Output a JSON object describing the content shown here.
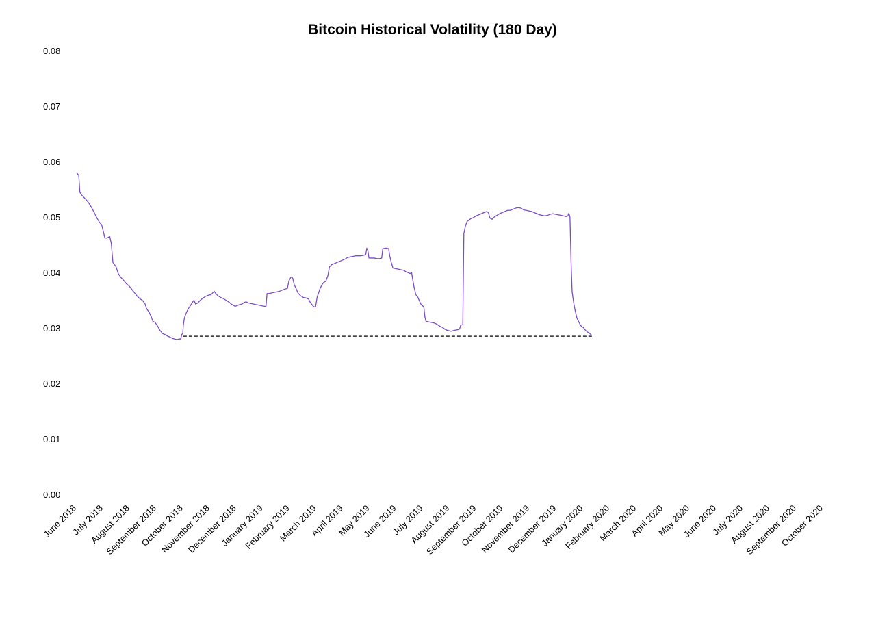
{
  "chart_data": {
    "type": "line",
    "title": "Bitcoin Historical Volatility (180 Day)",
    "xlabel": "",
    "ylabel": "",
    "ylim": [
      0,
      0.08
    ],
    "yticks": [
      "0.00",
      "0.01",
      "0.02",
      "0.03",
      "0.04",
      "0.05",
      "0.06",
      "0.07",
      "0.08"
    ],
    "categories": [
      "June 2018",
      "July 2018",
      "August 2018",
      "September 2018",
      "October 2018",
      "November 2018",
      "December 2018",
      "January 2019",
      "February 2019",
      "March 2019",
      "April 2019",
      "May 2019",
      "June 2019",
      "July 2019",
      "August 2019",
      "September 2019",
      "October 2019",
      "November 2019",
      "December 2019",
      "January 2020",
      "February 2020",
      "March 2020",
      "April 2020",
      "May 2020",
      "June 2020",
      "July 2020",
      "August 2020",
      "September 2020",
      "October 2020"
    ],
    "grid": false,
    "legend": "none",
    "line_color": "#7b4bc8",
    "reference_line_color": "#000000",
    "series": [
      {
        "style": "solid",
        "points": [
          [
            0.0,
            0.058
          ],
          [
            0.08,
            0.0575
          ],
          [
            0.12,
            0.0545
          ],
          [
            0.18,
            0.054
          ],
          [
            0.26,
            0.0536
          ],
          [
            0.36,
            0.0531
          ],
          [
            0.46,
            0.0525
          ],
          [
            0.56,
            0.0517
          ],
          [
            0.66,
            0.0508
          ],
          [
            0.74,
            0.05
          ],
          [
            0.8,
            0.0495
          ],
          [
            0.86,
            0.049
          ],
          [
            0.94,
            0.0486
          ],
          [
            1.02,
            0.047
          ],
          [
            1.06,
            0.0462
          ],
          [
            1.14,
            0.0462
          ],
          [
            1.24,
            0.0465
          ],
          [
            1.3,
            0.0452
          ],
          [
            1.36,
            0.0418
          ],
          [
            1.42,
            0.0414
          ],
          [
            1.48,
            0.041
          ],
          [
            1.56,
            0.0398
          ],
          [
            1.66,
            0.0391
          ],
          [
            1.76,
            0.0386
          ],
          [
            1.86,
            0.038
          ],
          [
            1.96,
            0.0376
          ],
          [
            2.06,
            0.037
          ],
          [
            2.16,
            0.0364
          ],
          [
            2.26,
            0.0358
          ],
          [
            2.36,
            0.0353
          ],
          [
            2.46,
            0.035
          ],
          [
            2.56,
            0.0344
          ],
          [
            2.62,
            0.0335
          ],
          [
            2.72,
            0.0328
          ],
          [
            2.8,
            0.032
          ],
          [
            2.86,
            0.0312
          ],
          [
            2.94,
            0.031
          ],
          [
            3.04,
            0.0303
          ],
          [
            3.12,
            0.0296
          ],
          [
            3.22,
            0.029
          ],
          [
            3.32,
            0.0288
          ],
          [
            3.42,
            0.0285
          ],
          [
            3.52,
            0.0283
          ],
          [
            3.6,
            0.0281
          ],
          [
            3.68,
            0.028
          ],
          [
            3.76,
            0.0279
          ],
          [
            3.84,
            0.028
          ],
          [
            3.9,
            0.028
          ],
          [
            3.94,
            0.0288
          ],
          [
            3.98,
            0.029
          ],
          [
            4.0,
            0.0305
          ],
          [
            4.04,
            0.0318
          ],
          [
            4.1,
            0.0326
          ],
          [
            4.18,
            0.0334
          ],
          [
            4.26,
            0.034
          ],
          [
            4.34,
            0.0346
          ],
          [
            4.4,
            0.035
          ],
          [
            4.46,
            0.0343
          ],
          [
            4.54,
            0.0345
          ],
          [
            4.64,
            0.035
          ],
          [
            4.74,
            0.0354
          ],
          [
            4.84,
            0.0357
          ],
          [
            4.94,
            0.0359
          ],
          [
            5.04,
            0.036
          ],
          [
            5.1,
            0.0363
          ],
          [
            5.16,
            0.0366
          ],
          [
            5.22,
            0.0362
          ],
          [
            5.3,
            0.0358
          ],
          [
            5.4,
            0.0355
          ],
          [
            5.5,
            0.0353
          ],
          [
            5.6,
            0.035
          ],
          [
            5.7,
            0.0347
          ],
          [
            5.8,
            0.0343
          ],
          [
            5.88,
            0.0341
          ],
          [
            5.94,
            0.0339
          ],
          [
            6.0,
            0.034
          ],
          [
            6.1,
            0.0342
          ],
          [
            6.2,
            0.0343
          ],
          [
            6.28,
            0.0346
          ],
          [
            6.36,
            0.0347
          ],
          [
            6.44,
            0.0345
          ],
          [
            6.54,
            0.0344
          ],
          [
            6.64,
            0.0343
          ],
          [
            6.74,
            0.0342
          ],
          [
            6.84,
            0.0341
          ],
          [
            6.94,
            0.034
          ],
          [
            7.04,
            0.0339
          ],
          [
            7.1,
            0.0339
          ],
          [
            7.14,
            0.0362
          ],
          [
            7.2,
            0.0362
          ],
          [
            7.3,
            0.0363
          ],
          [
            7.4,
            0.0364
          ],
          [
            7.5,
            0.0365
          ],
          [
            7.6,
            0.0366
          ],
          [
            7.7,
            0.0368
          ],
          [
            7.8,
            0.037
          ],
          [
            7.9,
            0.0371
          ],
          [
            7.96,
            0.0385
          ],
          [
            8.04,
            0.0392
          ],
          [
            8.1,
            0.039
          ],
          [
            8.16,
            0.0378
          ],
          [
            8.22,
            0.0372
          ],
          [
            8.3,
            0.0363
          ],
          [
            8.4,
            0.0358
          ],
          [
            8.5,
            0.0355
          ],
          [
            8.6,
            0.0354
          ],
          [
            8.7,
            0.0352
          ],
          [
            8.76,
            0.0346
          ],
          [
            8.84,
            0.0341
          ],
          [
            8.9,
            0.0338
          ],
          [
            8.96,
            0.0338
          ],
          [
            9.02,
            0.0356
          ],
          [
            9.08,
            0.0364
          ],
          [
            9.12,
            0.037
          ],
          [
            9.2,
            0.0378
          ],
          [
            9.26,
            0.0382
          ],
          [
            9.34,
            0.0384
          ],
          [
            9.42,
            0.0394
          ],
          [
            9.48,
            0.041
          ],
          [
            9.56,
            0.0414
          ],
          [
            9.66,
            0.0416
          ],
          [
            9.76,
            0.0418
          ],
          [
            9.86,
            0.042
          ],
          [
            9.96,
            0.0422
          ],
          [
            10.06,
            0.0424
          ],
          [
            10.16,
            0.0427
          ],
          [
            10.26,
            0.0428
          ],
          [
            10.36,
            0.0429
          ],
          [
            10.46,
            0.043
          ],
          [
            10.56,
            0.043
          ],
          [
            10.66,
            0.043
          ],
          [
            10.76,
            0.0431
          ],
          [
            10.84,
            0.0432
          ],
          [
            10.88,
            0.0444
          ],
          [
            10.92,
            0.044
          ],
          [
            10.96,
            0.0426
          ],
          [
            11.06,
            0.0426
          ],
          [
            11.16,
            0.0426
          ],
          [
            11.26,
            0.0425
          ],
          [
            11.36,
            0.0425
          ],
          [
            11.44,
            0.0426
          ],
          [
            11.48,
            0.0443
          ],
          [
            11.6,
            0.0444
          ],
          [
            11.7,
            0.0443
          ],
          [
            11.74,
            0.043
          ],
          [
            11.8,
            0.0418
          ],
          [
            11.86,
            0.0408
          ],
          [
            11.96,
            0.0407
          ],
          [
            12.06,
            0.0406
          ],
          [
            12.16,
            0.0405
          ],
          [
            12.26,
            0.0404
          ],
          [
            12.36,
            0.0401
          ],
          [
            12.46,
            0.0399
          ],
          [
            12.5,
            0.0398
          ],
          [
            12.56,
            0.04
          ],
          [
            12.6,
            0.0388
          ],
          [
            12.66,
            0.0372
          ],
          [
            12.72,
            0.036
          ],
          [
            12.8,
            0.0355
          ],
          [
            12.86,
            0.0348
          ],
          [
            12.92,
            0.0342
          ],
          [
            13.02,
            0.0338
          ],
          [
            13.06,
            0.032
          ],
          [
            13.1,
            0.0312
          ],
          [
            13.2,
            0.0311
          ],
          [
            13.3,
            0.031
          ],
          [
            13.4,
            0.0309
          ],
          [
            13.5,
            0.0307
          ],
          [
            13.56,
            0.0305
          ],
          [
            13.62,
            0.0303
          ],
          [
            13.72,
            0.0301
          ],
          [
            13.8,
            0.0298
          ],
          [
            13.88,
            0.0296
          ],
          [
            13.96,
            0.0295
          ],
          [
            14.04,
            0.0294
          ],
          [
            14.12,
            0.0295
          ],
          [
            14.2,
            0.0296
          ],
          [
            14.3,
            0.0297
          ],
          [
            14.36,
            0.0298
          ],
          [
            14.4,
            0.0305
          ],
          [
            14.48,
            0.0306
          ],
          [
            14.52,
            0.047
          ],
          [
            14.58,
            0.0484
          ],
          [
            14.64,
            0.0492
          ],
          [
            14.7,
            0.0494
          ],
          [
            14.78,
            0.0497
          ],
          [
            14.88,
            0.0499
          ],
          [
            14.98,
            0.0502
          ],
          [
            15.08,
            0.0504
          ],
          [
            15.18,
            0.0506
          ],
          [
            15.28,
            0.0508
          ],
          [
            15.38,
            0.051
          ],
          [
            15.44,
            0.0508
          ],
          [
            15.5,
            0.0498
          ],
          [
            15.58,
            0.0496
          ],
          [
            15.66,
            0.05
          ],
          [
            15.76,
            0.0503
          ],
          [
            15.86,
            0.0506
          ],
          [
            15.96,
            0.0508
          ],
          [
            16.06,
            0.051
          ],
          [
            16.16,
            0.0512
          ],
          [
            16.26,
            0.0512
          ],
          [
            16.36,
            0.0514
          ],
          [
            16.46,
            0.0516
          ],
          [
            16.56,
            0.0517
          ],
          [
            16.66,
            0.0516
          ],
          [
            16.76,
            0.0513
          ],
          [
            16.86,
            0.0512
          ],
          [
            16.96,
            0.0511
          ],
          [
            17.06,
            0.051
          ],
          [
            17.16,
            0.0508
          ],
          [
            17.26,
            0.0506
          ],
          [
            17.36,
            0.0504
          ],
          [
            17.46,
            0.0503
          ],
          [
            17.56,
            0.0502
          ],
          [
            17.66,
            0.0503
          ],
          [
            17.76,
            0.0505
          ],
          [
            17.86,
            0.0506
          ],
          [
            17.96,
            0.0505
          ],
          [
            18.06,
            0.0504
          ],
          [
            18.16,
            0.0503
          ],
          [
            18.26,
            0.0502
          ],
          [
            18.36,
            0.0501
          ],
          [
            18.42,
            0.0502
          ],
          [
            18.46,
            0.0507
          ],
          [
            18.5,
            0.05
          ],
          [
            18.54,
            0.042
          ],
          [
            18.58,
            0.0365
          ],
          [
            18.64,
            0.0345
          ],
          [
            18.7,
            0.033
          ],
          [
            18.76,
            0.0318
          ],
          [
            18.82,
            0.0312
          ],
          [
            18.88,
            0.0306
          ],
          [
            18.94,
            0.0302
          ],
          [
            19.0,
            0.0301
          ],
          [
            19.06,
            0.0297
          ],
          [
            19.14,
            0.0293
          ],
          [
            19.22,
            0.0291
          ],
          [
            19.28,
            0.0288
          ],
          [
            19.32,
            0.0287
          ]
        ]
      },
      {
        "style": "dashed",
        "points": [
          [
            4.0,
            0.0285
          ],
          [
            19.32,
            0.0285
          ]
        ]
      }
    ]
  }
}
